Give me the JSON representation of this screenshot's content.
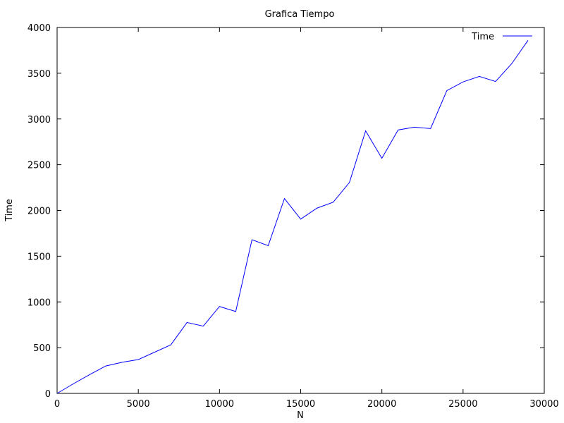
{
  "chart_data": {
    "type": "line",
    "title": "Grafica Tiempo",
    "xlabel": "N",
    "ylabel": "Time",
    "xlim": [
      0,
      30000
    ],
    "ylim": [
      0,
      4000
    ],
    "xticks": [
      0,
      5000,
      10000,
      15000,
      20000,
      25000,
      30000
    ],
    "yticks": [
      0,
      500,
      1000,
      1500,
      2000,
      2500,
      3000,
      3500,
      4000
    ],
    "grid": false,
    "legend_position": "top-right",
    "series": [
      {
        "name": "Time",
        "color": "#0000ff",
        "x": [
          0,
          1000,
          2000,
          3000,
          4000,
          5000,
          6000,
          7000,
          8000,
          9000,
          10000,
          11000,
          12000,
          13000,
          14000,
          15000,
          16000,
          17000,
          18000,
          19000,
          20000,
          21000,
          22000,
          23000,
          24000,
          25000,
          26000,
          27000,
          28000,
          29000
        ],
        "y": [
          0,
          105,
          205,
          300,
          340,
          370,
          450,
          530,
          775,
          735,
          950,
          895,
          1680,
          1615,
          2130,
          1905,
          2025,
          2090,
          2305,
          2870,
          2570,
          2880,
          2910,
          2895,
          3310,
          3405,
          3465,
          3410,
          3605,
          3860
        ]
      }
    ]
  }
}
